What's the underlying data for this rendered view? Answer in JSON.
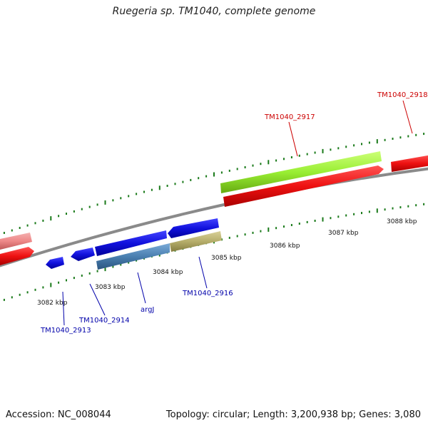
{
  "title": "Ruegeria sp. TM1040, complete genome",
  "footer": {
    "accession": "Accession: NC_008044",
    "topology": "Topology: circular; Length: 3,200,938 bp; Genes: 3,080"
  },
  "colors": {
    "background": "#ffffff",
    "backbone": "#808080",
    "tick": "#1a7a1a",
    "gene_red": "#ee1111",
    "gene_red_light": "#ee8888",
    "gene_blue": "#1111dd",
    "gene_steel": "#4a7fb0",
    "gene_khaki": "#b5ad6a",
    "gene_green": "#99ee33",
    "label_red": "#cc0000",
    "label_blue": "#0000aa"
  },
  "scale_labels": [
    "3082 kbp",
    "3083 kbp",
    "3084 kbp",
    "3085 kbp",
    "3086 kbp",
    "3087 kbp",
    "3088 kbp"
  ],
  "gene_labels": [
    {
      "text": "TM1040_2913",
      "color": "blue"
    },
    {
      "text": "TM1040_2914",
      "color": "blue"
    },
    {
      "text": "argJ",
      "color": "blue"
    },
    {
      "text": "TM1040_2916",
      "color": "blue"
    },
    {
      "text": "TM1040_2917",
      "color": "red"
    },
    {
      "text": "TM1040_2918",
      "color": "red"
    }
  ]
}
